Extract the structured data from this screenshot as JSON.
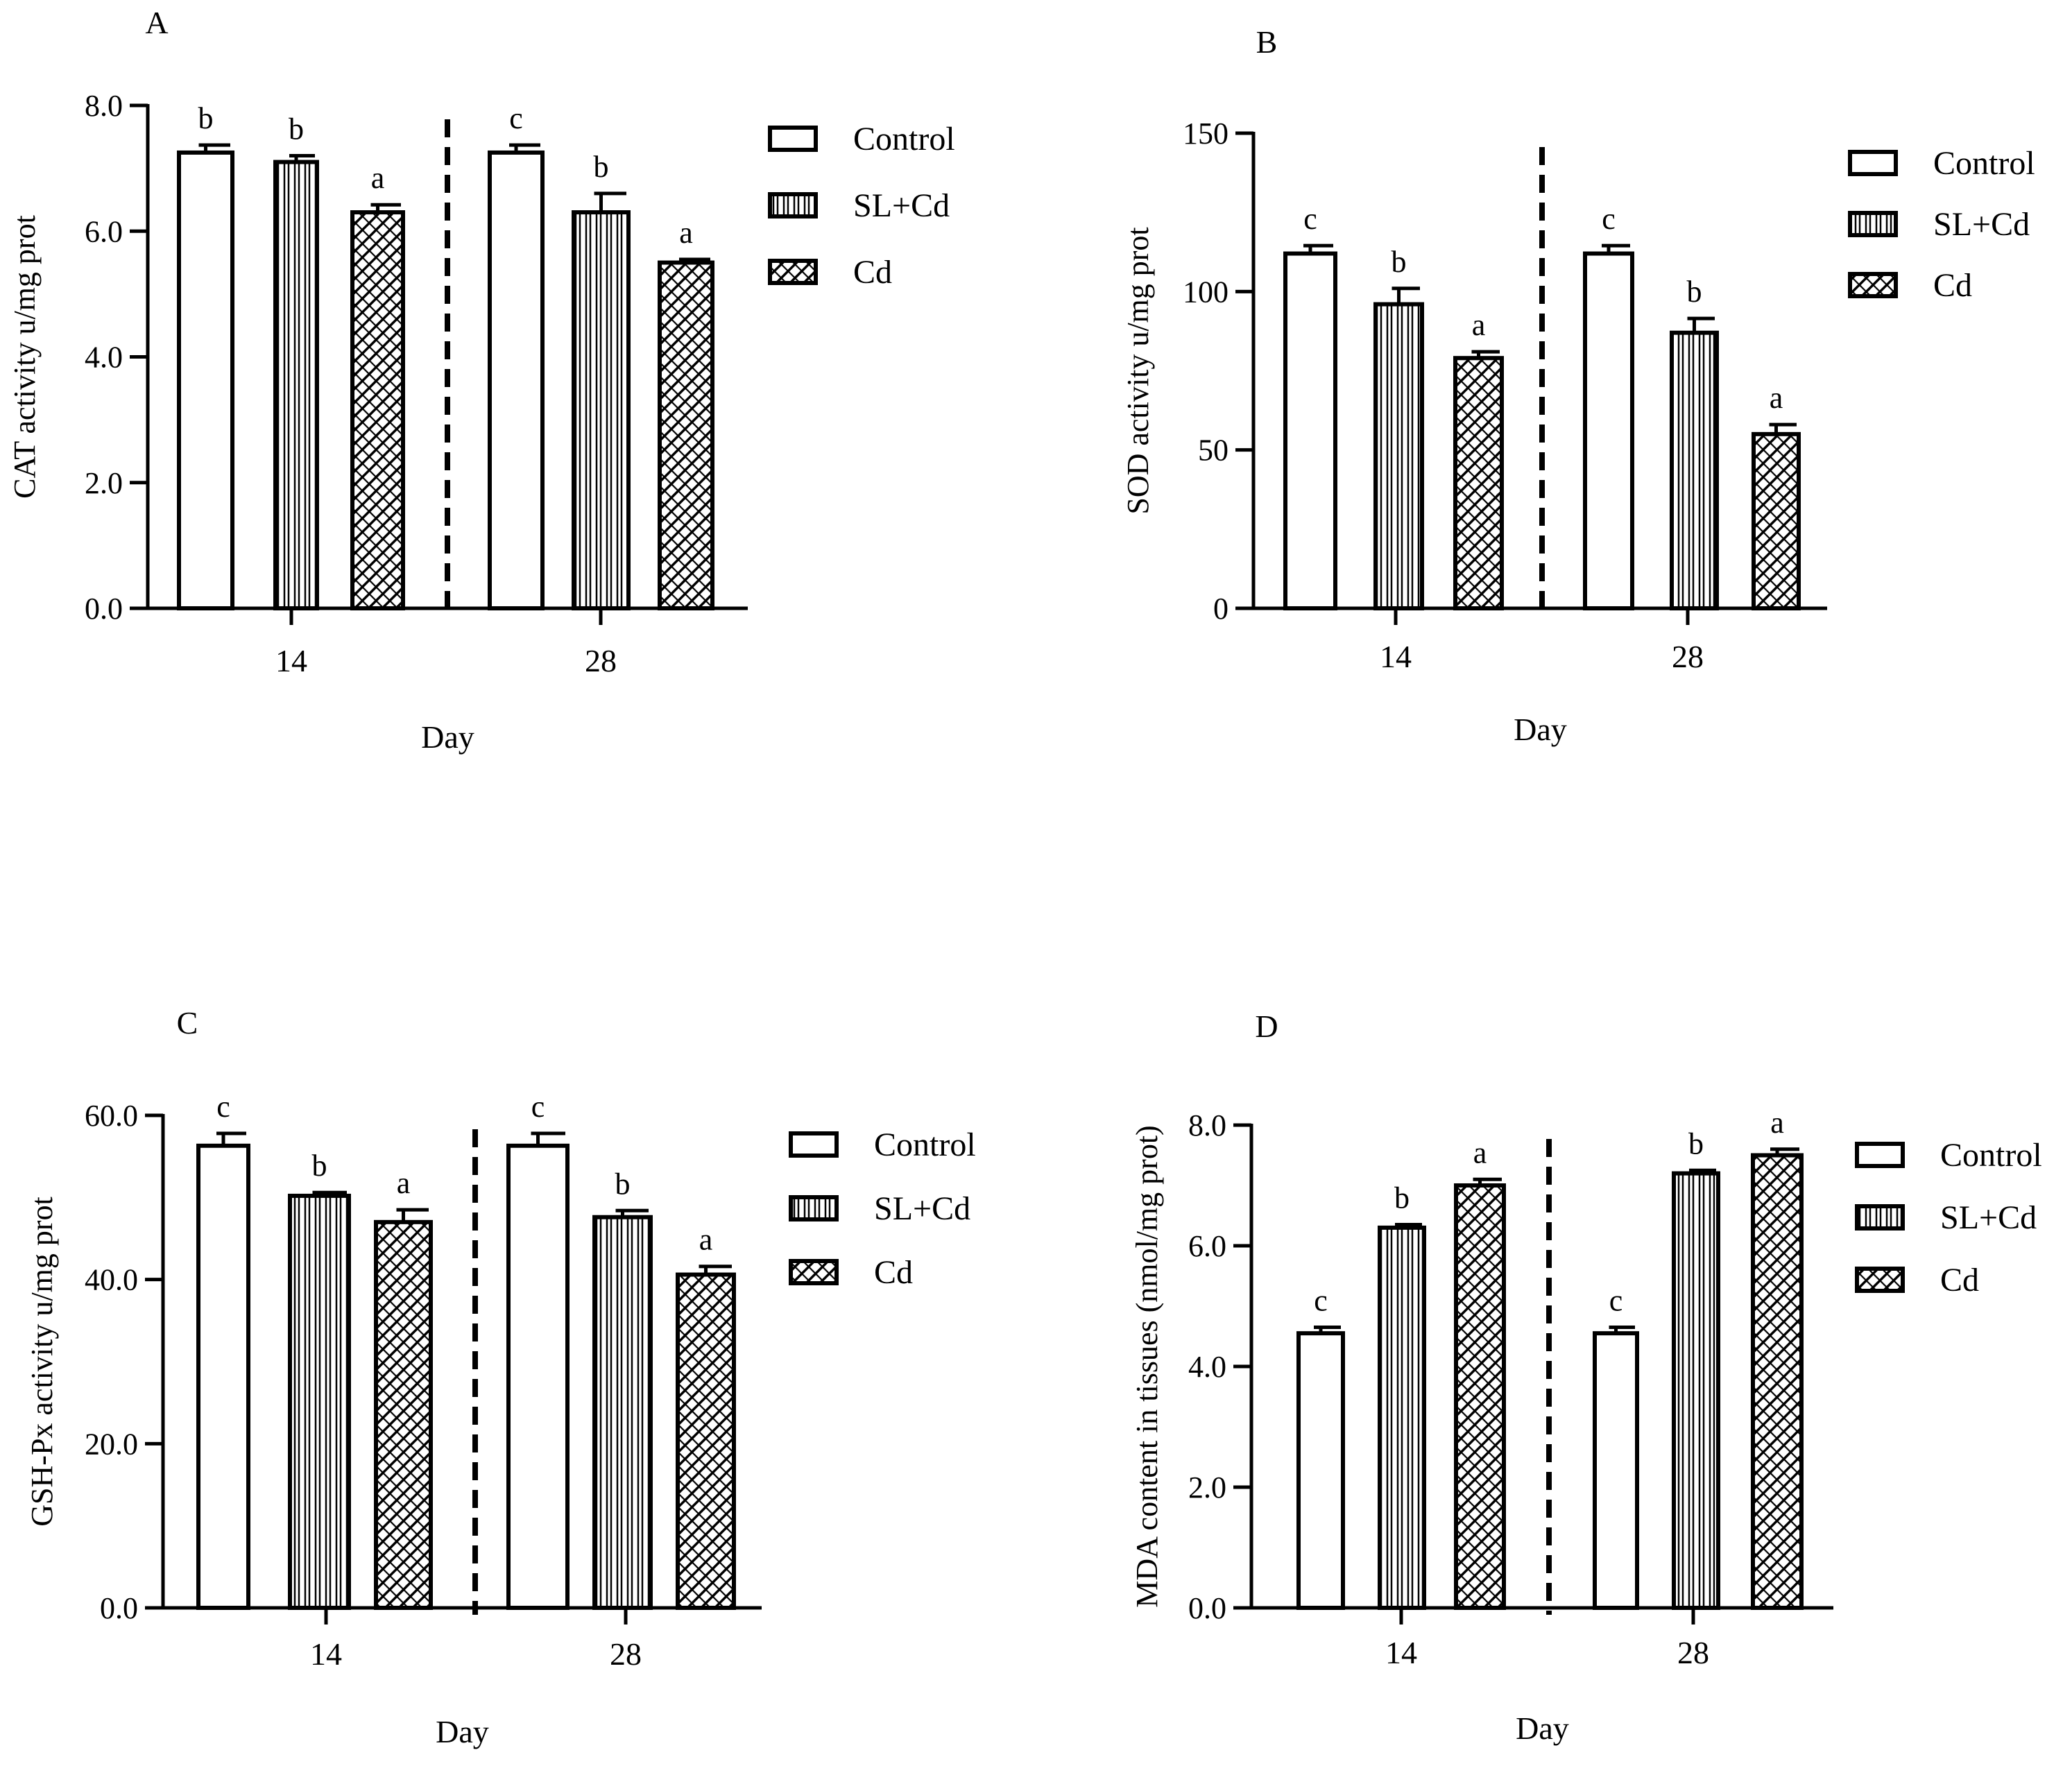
{
  "legend": {
    "entries": [
      "Control",
      "SL+Cd",
      "Cd"
    ],
    "patterns": [
      "open",
      "vertical-stripes",
      "diagonal-hatch"
    ]
  },
  "chart_data": [
    {
      "panel": "A",
      "type": "bar",
      "title": "",
      "xlabel": "Day",
      "ylabel": "CAT activity u/mg prot",
      "categories": [
        "14",
        "28"
      ],
      "ylim": [
        0,
        8
      ],
      "yticks": [
        0,
        2,
        4,
        6,
        8
      ],
      "ytick_labels": [
        "0.0",
        "2.0",
        "4.0",
        "6.0",
        "8.0"
      ],
      "series": [
        {
          "name": "Control",
          "values": [
            7.25,
            7.25
          ],
          "errors": [
            0.12,
            0.12
          ],
          "letters": [
            "b",
            "c"
          ]
        },
        {
          "name": "SL+Cd",
          "values": [
            7.1,
            6.3
          ],
          "errors": [
            0.1,
            0.3
          ],
          "letters": [
            "b",
            "b"
          ]
        },
        {
          "name": "Cd",
          "values": [
            6.3,
            5.5
          ],
          "errors": [
            0.12,
            0.05
          ],
          "letters": [
            "a",
            "a"
          ]
        }
      ]
    },
    {
      "panel": "B",
      "type": "bar",
      "title": "",
      "xlabel": "Day",
      "ylabel": "SOD activity u/mg prot",
      "categories": [
        "14",
        "28"
      ],
      "ylim": [
        0,
        150
      ],
      "yticks": [
        0,
        50,
        100,
        150
      ],
      "ytick_labels": [
        "0",
        "50",
        "100",
        "150"
      ],
      "series": [
        {
          "name": "Control",
          "values": [
            112,
            112
          ],
          "errors": [
            2.5,
            2.5
          ],
          "letters": [
            "c",
            "c"
          ]
        },
        {
          "name": "SL+Cd",
          "values": [
            96,
            87
          ],
          "errors": [
            5,
            4.5
          ],
          "letters": [
            "b",
            "b"
          ]
        },
        {
          "name": "Cd",
          "values": [
            79,
            55
          ],
          "errors": [
            2,
            3
          ],
          "letters": [
            "a",
            "a"
          ]
        }
      ]
    },
    {
      "panel": "C",
      "type": "bar",
      "title": "",
      "xlabel": "Day",
      "ylabel": "GSH-Px activity u/mg prot",
      "categories": [
        "14",
        "28"
      ],
      "ylim": [
        0,
        60
      ],
      "yticks": [
        0,
        20,
        40,
        60
      ],
      "ytick_labels": [
        "0.0",
        "20.0",
        "40.0",
        "60.0"
      ],
      "series": [
        {
          "name": "Control",
          "values": [
            56.3,
            56.3
          ],
          "errors": [
            1.5,
            1.5
          ],
          "letters": [
            "c",
            "c"
          ]
        },
        {
          "name": "SL+Cd",
          "values": [
            50.2,
            47.6
          ],
          "errors": [
            0.4,
            0.8
          ],
          "letters": [
            "b",
            "b"
          ]
        },
        {
          "name": "Cd",
          "values": [
            47,
            40.6
          ],
          "errors": [
            1.5,
            1.0
          ],
          "letters": [
            "a",
            "a"
          ]
        }
      ]
    },
    {
      "panel": "D",
      "type": "bar",
      "title": "",
      "xlabel": "Day",
      "ylabel": "MDA content in tissues (nmol/mg prot)",
      "categories": [
        "14",
        "28"
      ],
      "ylim": [
        0,
        8
      ],
      "yticks": [
        0,
        2,
        4,
        6,
        8
      ],
      "ytick_labels": [
        "0.0",
        "2.0",
        "4.0",
        "6.0",
        "8.0"
      ],
      "series": [
        {
          "name": "Control",
          "values": [
            4.55,
            4.55
          ],
          "errors": [
            0.1,
            0.1
          ],
          "letters": [
            "c",
            "c"
          ]
        },
        {
          "name": "SL+Cd",
          "values": [
            6.3,
            7.2
          ],
          "errors": [
            0.05,
            0.05
          ],
          "letters": [
            "b",
            "b"
          ]
        },
        {
          "name": "Cd",
          "values": [
            7.0,
            7.5
          ],
          "errors": [
            0.1,
            0.1
          ],
          "letters": [
            "a",
            "a"
          ]
        }
      ]
    }
  ]
}
